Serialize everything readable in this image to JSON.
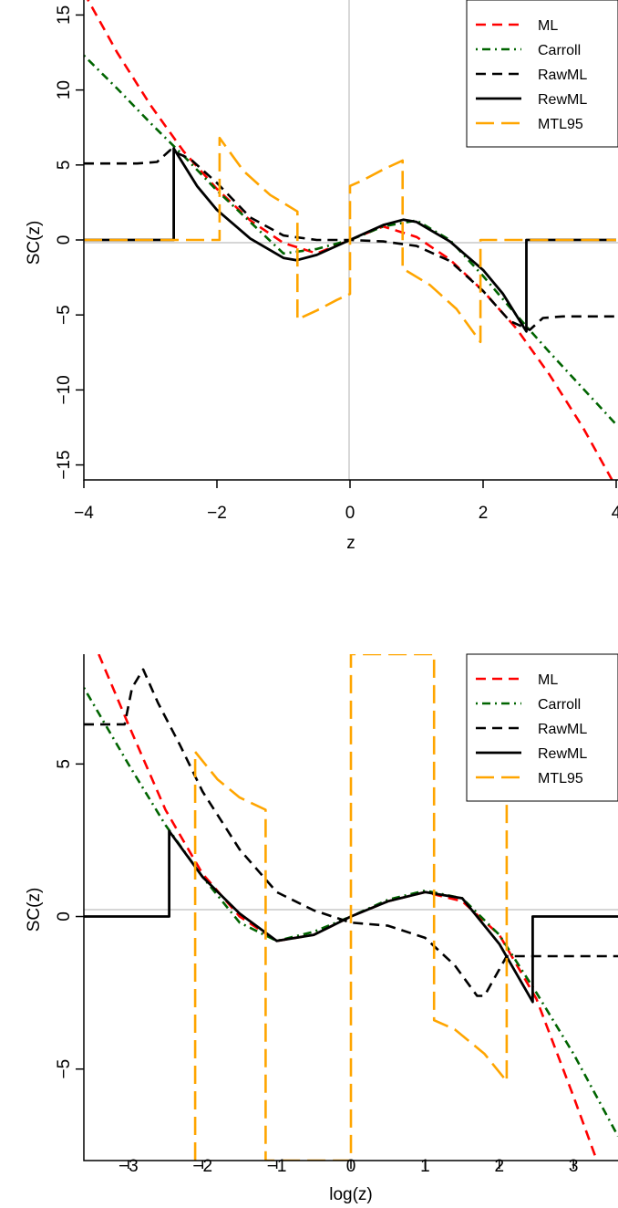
{
  "chart_data": [
    {
      "type": "line",
      "xlabel": "z",
      "ylabel": "SC(z)",
      "xlim": [
        -4,
        4
      ],
      "ylim": [
        -16,
        16
      ],
      "xticks": [
        -4,
        -2,
        0,
        2,
        4
      ],
      "xtick_labels": [
        "−4",
        "−2",
        "0",
        "2",
        "4"
      ],
      "yticks": [
        -15,
        -10,
        -5,
        0,
        5,
        10,
        15
      ],
      "ytick_labels": [
        "−15",
        "−10",
        "−5",
        "0",
        "5",
        "10",
        "15"
      ],
      "reference_lines": {
        "x": 0,
        "y": 0
      },
      "legend": {
        "placement": "top-right",
        "entries": [
          "ML",
          "Carroll",
          "RawML",
          "RewML",
          "MTL95"
        ]
      },
      "series": [
        {
          "name": "ML",
          "color": "#ff0000",
          "dash": "dashed",
          "x": [
            -4,
            -3.5,
            -3,
            -2.5,
            -2,
            -1.5,
            -1,
            -0.5,
            0,
            0.5,
            1,
            1.5,
            2,
            2.5,
            3,
            3.5,
            4
          ],
          "y": [
            16.5,
            12.5,
            9,
            5.9,
            3.4,
            1.3,
            -0.2,
            -0.9,
            0,
            0.9,
            0.2,
            -1.3,
            -3.4,
            -5.9,
            -9,
            -12.5,
            -16.5
          ]
        },
        {
          "name": "Carroll",
          "color": "#006400",
          "dash": "dotdash",
          "x": [
            -4,
            -3.5,
            -3,
            -2.5,
            -2,
            -1.5,
            -1,
            -0.5,
            0,
            0.5,
            1,
            1.5,
            2,
            2.5,
            3,
            3.5,
            4
          ],
          "y": [
            12.3,
            10.1,
            7.8,
            5.6,
            3.3,
            1.2,
            -0.9,
            -0.6,
            0,
            0.9,
            1.3,
            0,
            -2.4,
            -5,
            -7.5,
            -9.9,
            -12.3
          ]
        },
        {
          "name": "RawML",
          "color": "#000000",
          "dash": "dashed",
          "x": [
            -4,
            -3.2,
            -2.9,
            -2.7,
            -2.4,
            -2,
            -1.5,
            -1,
            -0.5,
            0,
            0.5,
            1,
            1.5,
            2,
            2.4,
            2.7,
            2.9,
            3.2,
            4
          ],
          "y": [
            5.1,
            5.1,
            5.2,
            6,
            5.4,
            3.8,
            1.5,
            0.3,
            0,
            0,
            -0.1,
            -0.4,
            -1.4,
            -3.4,
            -5.4,
            -6,
            -5.2,
            -5.1,
            -5.1
          ]
        },
        {
          "name": "RewML",
          "color": "#000000",
          "dash": "solid",
          "x": [
            -4,
            -2.65,
            -2.65,
            -2.3,
            -2,
            -1.5,
            -1,
            -0.8,
            -0.5,
            0,
            0.5,
            0.8,
            1,
            1.5,
            2,
            2.3,
            2.65,
            2.65,
            4
          ],
          "y": [
            0,
            0,
            6.1,
            3.6,
            2,
            0.1,
            -1.2,
            -1.35,
            -1,
            0,
            1,
            1.35,
            1.2,
            -0.1,
            -2,
            -3.6,
            -6.1,
            0,
            0
          ]
        },
        {
          "name": "MTL95",
          "color": "#ffa500",
          "dash": "longdash",
          "x": [
            -4,
            -1.96,
            -1.96,
            -1.6,
            -1.2,
            -0.79,
            -0.79,
            -0.5,
            -0.2,
            0,
            0,
            0.2,
            0.5,
            0.79,
            0.79,
            1.2,
            1.6,
            1.96,
            1.96,
            4
          ],
          "y": [
            0,
            0,
            6.8,
            4.6,
            3,
            1.9,
            -5.3,
            -4.7,
            -4,
            -3.6,
            3.6,
            4,
            4.7,
            5.3,
            -1.9,
            -3,
            -4.6,
            -6.8,
            0,
            0
          ]
        }
      ]
    },
    {
      "type": "line",
      "xlabel": "log(z)",
      "ylabel": "SC(z)",
      "xlim": [
        -3.6,
        3.6
      ],
      "ylim": [
        -8,
        8.6
      ],
      "xticks": [
        -3,
        -2,
        -1,
        0,
        1,
        2,
        3
      ],
      "xtick_labels": [
        "−3",
        "−2",
        "−1",
        "0",
        "1",
        "2",
        "3"
      ],
      "yticks": [
        -5,
        0,
        5
      ],
      "ytick_labels": [
        "−5",
        "0",
        "5"
      ],
      "reference_lines": {
        "y": 0
      },
      "legend": {
        "placement": "top-right",
        "entries": [
          "ML",
          "Carroll",
          "RawML",
          "RewML",
          "MTL95"
        ]
      },
      "series": [
        {
          "name": "ML",
          "color": "#ff0000",
          "dash": "dashed",
          "x": [
            -3.4,
            -3,
            -2.5,
            -2,
            -1.5,
            -1,
            -0.5,
            0,
            0.5,
            1,
            1.5,
            2,
            2.5,
            3,
            3.3
          ],
          "y": [
            8.6,
            6.3,
            3.5,
            1.4,
            0,
            -0.8,
            -0.6,
            0,
            0.5,
            0.8,
            0.5,
            -0.6,
            -2.7,
            -5.9,
            -7.9
          ]
        },
        {
          "name": "Carroll",
          "color": "#006400",
          "dash": "dotdash",
          "x": [
            -3.6,
            -3,
            -2.5,
            -2,
            -1.5,
            -1,
            -0.5,
            0,
            0.5,
            1,
            1.5,
            2,
            2.5,
            3,
            3.6
          ],
          "y": [
            7.5,
            5,
            3,
            1.3,
            -0.2,
            -0.8,
            -0.5,
            0,
            0.55,
            0.85,
            0.6,
            -0.6,
            -2.5,
            -4.5,
            -7.2
          ]
        },
        {
          "name": "RawML",
          "color": "#000000",
          "dash": "dashed",
          "x": [
            -3.6,
            -3.05,
            -2.95,
            -2.8,
            -2.6,
            -2.3,
            -2,
            -1.5,
            -1,
            -0.5,
            0,
            0.5,
            1,
            1.4,
            1.7,
            1.8,
            2.1,
            3.6
          ],
          "y": [
            6.3,
            6.3,
            7.5,
            8.1,
            7,
            5.6,
            4.1,
            2.2,
            0.8,
            0.2,
            -0.2,
            -0.3,
            -0.7,
            -1.6,
            -2.6,
            -2.6,
            -1.3,
            -1.3
          ]
        },
        {
          "name": "RewML",
          "color": "#000000",
          "dash": "solid",
          "x": [
            -3.6,
            -2.45,
            -2.45,
            -2,
            -1.5,
            -1,
            -0.5,
            0,
            0.5,
            1,
            1.5,
            2,
            2.45,
            2.45,
            3.6
          ],
          "y": [
            0,
            0,
            2.8,
            1.3,
            0.1,
            -0.8,
            -0.6,
            0,
            0.5,
            0.8,
            0.6,
            -0.9,
            -2.8,
            0,
            0
          ]
        },
        {
          "name": "MTL95",
          "color": "#ffa500",
          "dash": "longdash",
          "x": [
            -2.1,
            -2.1,
            -1.8,
            -1.5,
            -1.15,
            -1.15,
            0,
            0,
            1.12,
            1.12,
            1.4,
            1.8,
            2.1,
            2.1
          ],
          "y": [
            -8,
            5.4,
            4.5,
            3.9,
            3.5,
            -8,
            -8,
            8.6,
            8.6,
            -3.4,
            -3.7,
            -4.5,
            -5.4,
            4
          ]
        }
      ]
    }
  ]
}
